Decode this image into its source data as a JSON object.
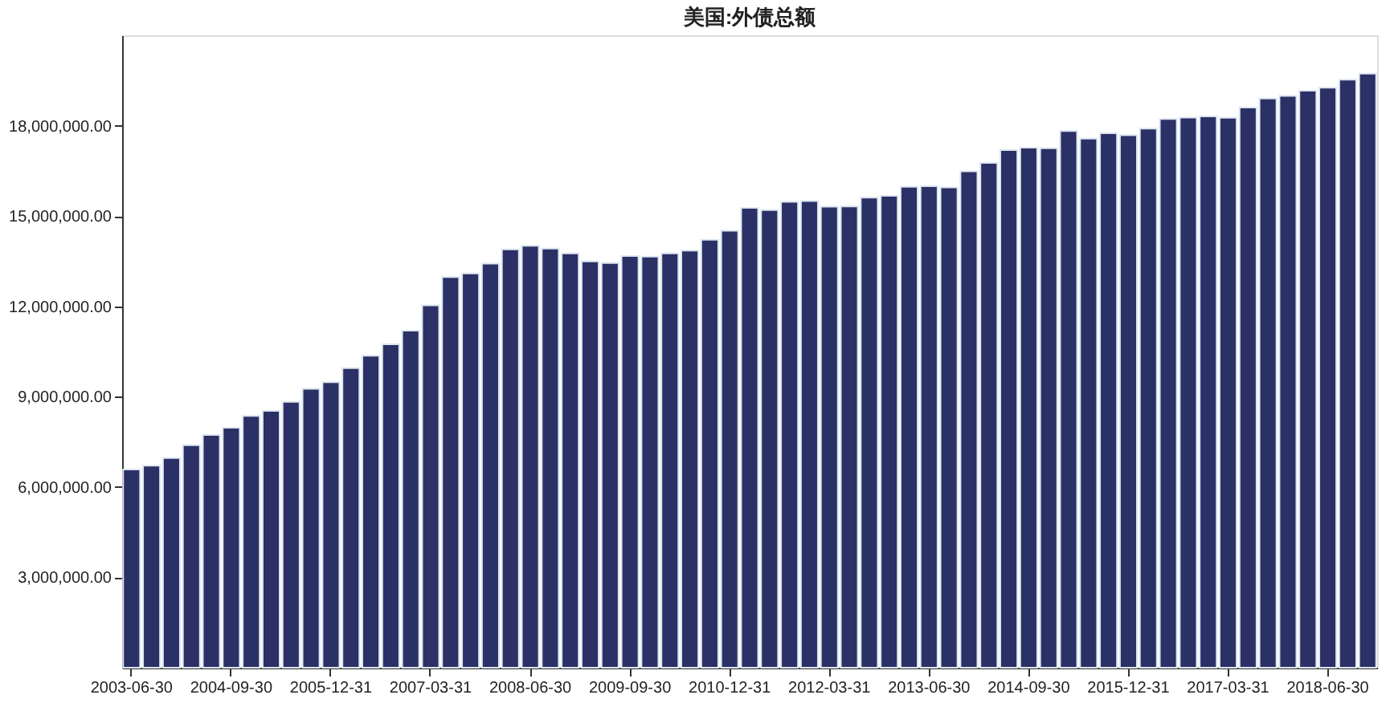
{
  "chart_data": {
    "type": "bar",
    "title": "美国:外债总额",
    "categories": [
      "2003-06-30",
      null,
      null,
      null,
      null,
      "2004-09-30",
      null,
      null,
      null,
      null,
      "2005-12-31",
      null,
      null,
      null,
      null,
      "2007-03-31",
      null,
      null,
      null,
      null,
      "2008-06-30",
      null,
      null,
      null,
      null,
      "2009-09-30",
      null,
      null,
      null,
      null,
      "2010-12-31",
      null,
      null,
      null,
      null,
      "2012-03-31",
      null,
      null,
      null,
      null,
      "2013-06-30",
      null,
      null,
      null,
      null,
      "2014-09-30",
      null,
      null,
      null,
      null,
      "2015-12-31",
      null,
      null,
      null,
      null,
      "2017-03-31",
      null,
      null,
      null,
      null,
      "2018-06-30",
      null,
      null
    ],
    "values": [
      6580000,
      6710000,
      6960000,
      7390000,
      7730000,
      7970000,
      8360000,
      8530000,
      8830000,
      9260000,
      9480000,
      9950000,
      10360000,
      10740000,
      11190000,
      12030000,
      12970000,
      13090000,
      13420000,
      13890000,
      14010000,
      13920000,
      13760000,
      13490000,
      13440000,
      13670000,
      13650000,
      13760000,
      13850000,
      14210000,
      14510000,
      15270000,
      15200000,
      15470000,
      15500000,
      15310000,
      15320000,
      15610000,
      15670000,
      15970000,
      15990000,
      15950000,
      16480000,
      16760000,
      17190000,
      17270000,
      17250000,
      17820000,
      17570000,
      17750000,
      17680000,
      17900000,
      18220000,
      18270000,
      18310000,
      18260000,
      18600000,
      18900000,
      18990000,
      19160000,
      19260000,
      19530000,
      19730000
    ],
    "color": "#2b3066",
    "ylim": [
      0,
      21000000
    ],
    "yticks": [
      {
        "value": 3000000,
        "label": "3,000,000.00"
      },
      {
        "value": 6000000,
        "label": "6,000,000.00"
      },
      {
        "value": 9000000,
        "label": "9,000,000.00"
      },
      {
        "value": 12000000,
        "label": "12,000,000.00"
      },
      {
        "value": 15000000,
        "label": "15,000,000.00"
      },
      {
        "value": 18000000,
        "label": "18,000,000.00"
      }
    ],
    "grid": false
  }
}
